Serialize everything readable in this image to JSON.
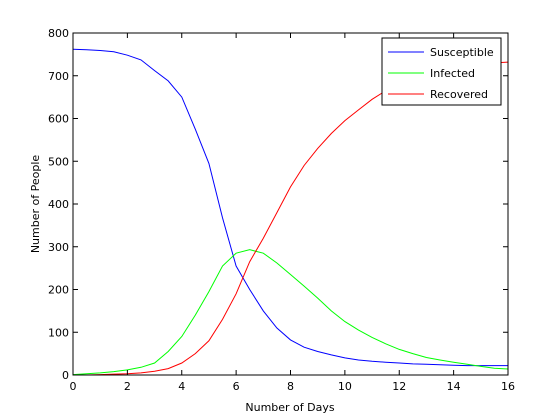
{
  "chart_data": {
    "type": "line",
    "xlabel": "Number of Days",
    "ylabel": "Number of People",
    "xlim": [
      0,
      16
    ],
    "ylim": [
      0,
      800
    ],
    "xticks": [
      0,
      2,
      4,
      6,
      8,
      10,
      12,
      14,
      16
    ],
    "yticks": [
      0,
      100,
      200,
      300,
      400,
      500,
      600,
      700,
      800
    ],
    "grid": false,
    "legend_position": "top-right",
    "x": [
      0,
      0.5,
      1,
      1.5,
      2,
      2.5,
      3,
      3.5,
      4,
      4.5,
      5,
      5.5,
      6,
      6.5,
      7,
      7.5,
      8,
      8.5,
      9,
      9.5,
      10,
      10.5,
      11,
      11.5,
      12,
      12.5,
      13,
      13.5,
      14,
      14.5,
      15,
      15.5,
      16
    ],
    "series": [
      {
        "name": "Susceptible",
        "color": "#0000ff",
        "values": [
          762,
          761,
          759,
          756,
          748,
          737,
          712,
          688,
          650,
          575,
          495,
          368,
          255,
          200,
          150,
          110,
          82,
          65,
          55,
          47,
          40,
          35,
          32,
          30,
          28,
          26,
          25,
          24,
          23,
          22,
          22,
          22,
          22
        ]
      },
      {
        "name": "Infected",
        "color": "#00ff00",
        "values": [
          1,
          3,
          5,
          8,
          12,
          18,
          28,
          55,
          90,
          140,
          195,
          255,
          285,
          293,
          285,
          262,
          235,
          208,
          180,
          150,
          125,
          105,
          88,
          73,
          60,
          50,
          41,
          35,
          30,
          25,
          20,
          16,
          14
        ]
      },
      {
        "name": "Recovered",
        "color": "#ff0000",
        "values": [
          0,
          0,
          1,
          2,
          3,
          5,
          9,
          15,
          28,
          50,
          80,
          130,
          190,
          265,
          320,
          380,
          440,
          490,
          530,
          565,
          595,
          620,
          645,
          665,
          680,
          694,
          705,
          713,
          719,
          724,
          727,
          730,
          732
        ]
      }
    ]
  }
}
